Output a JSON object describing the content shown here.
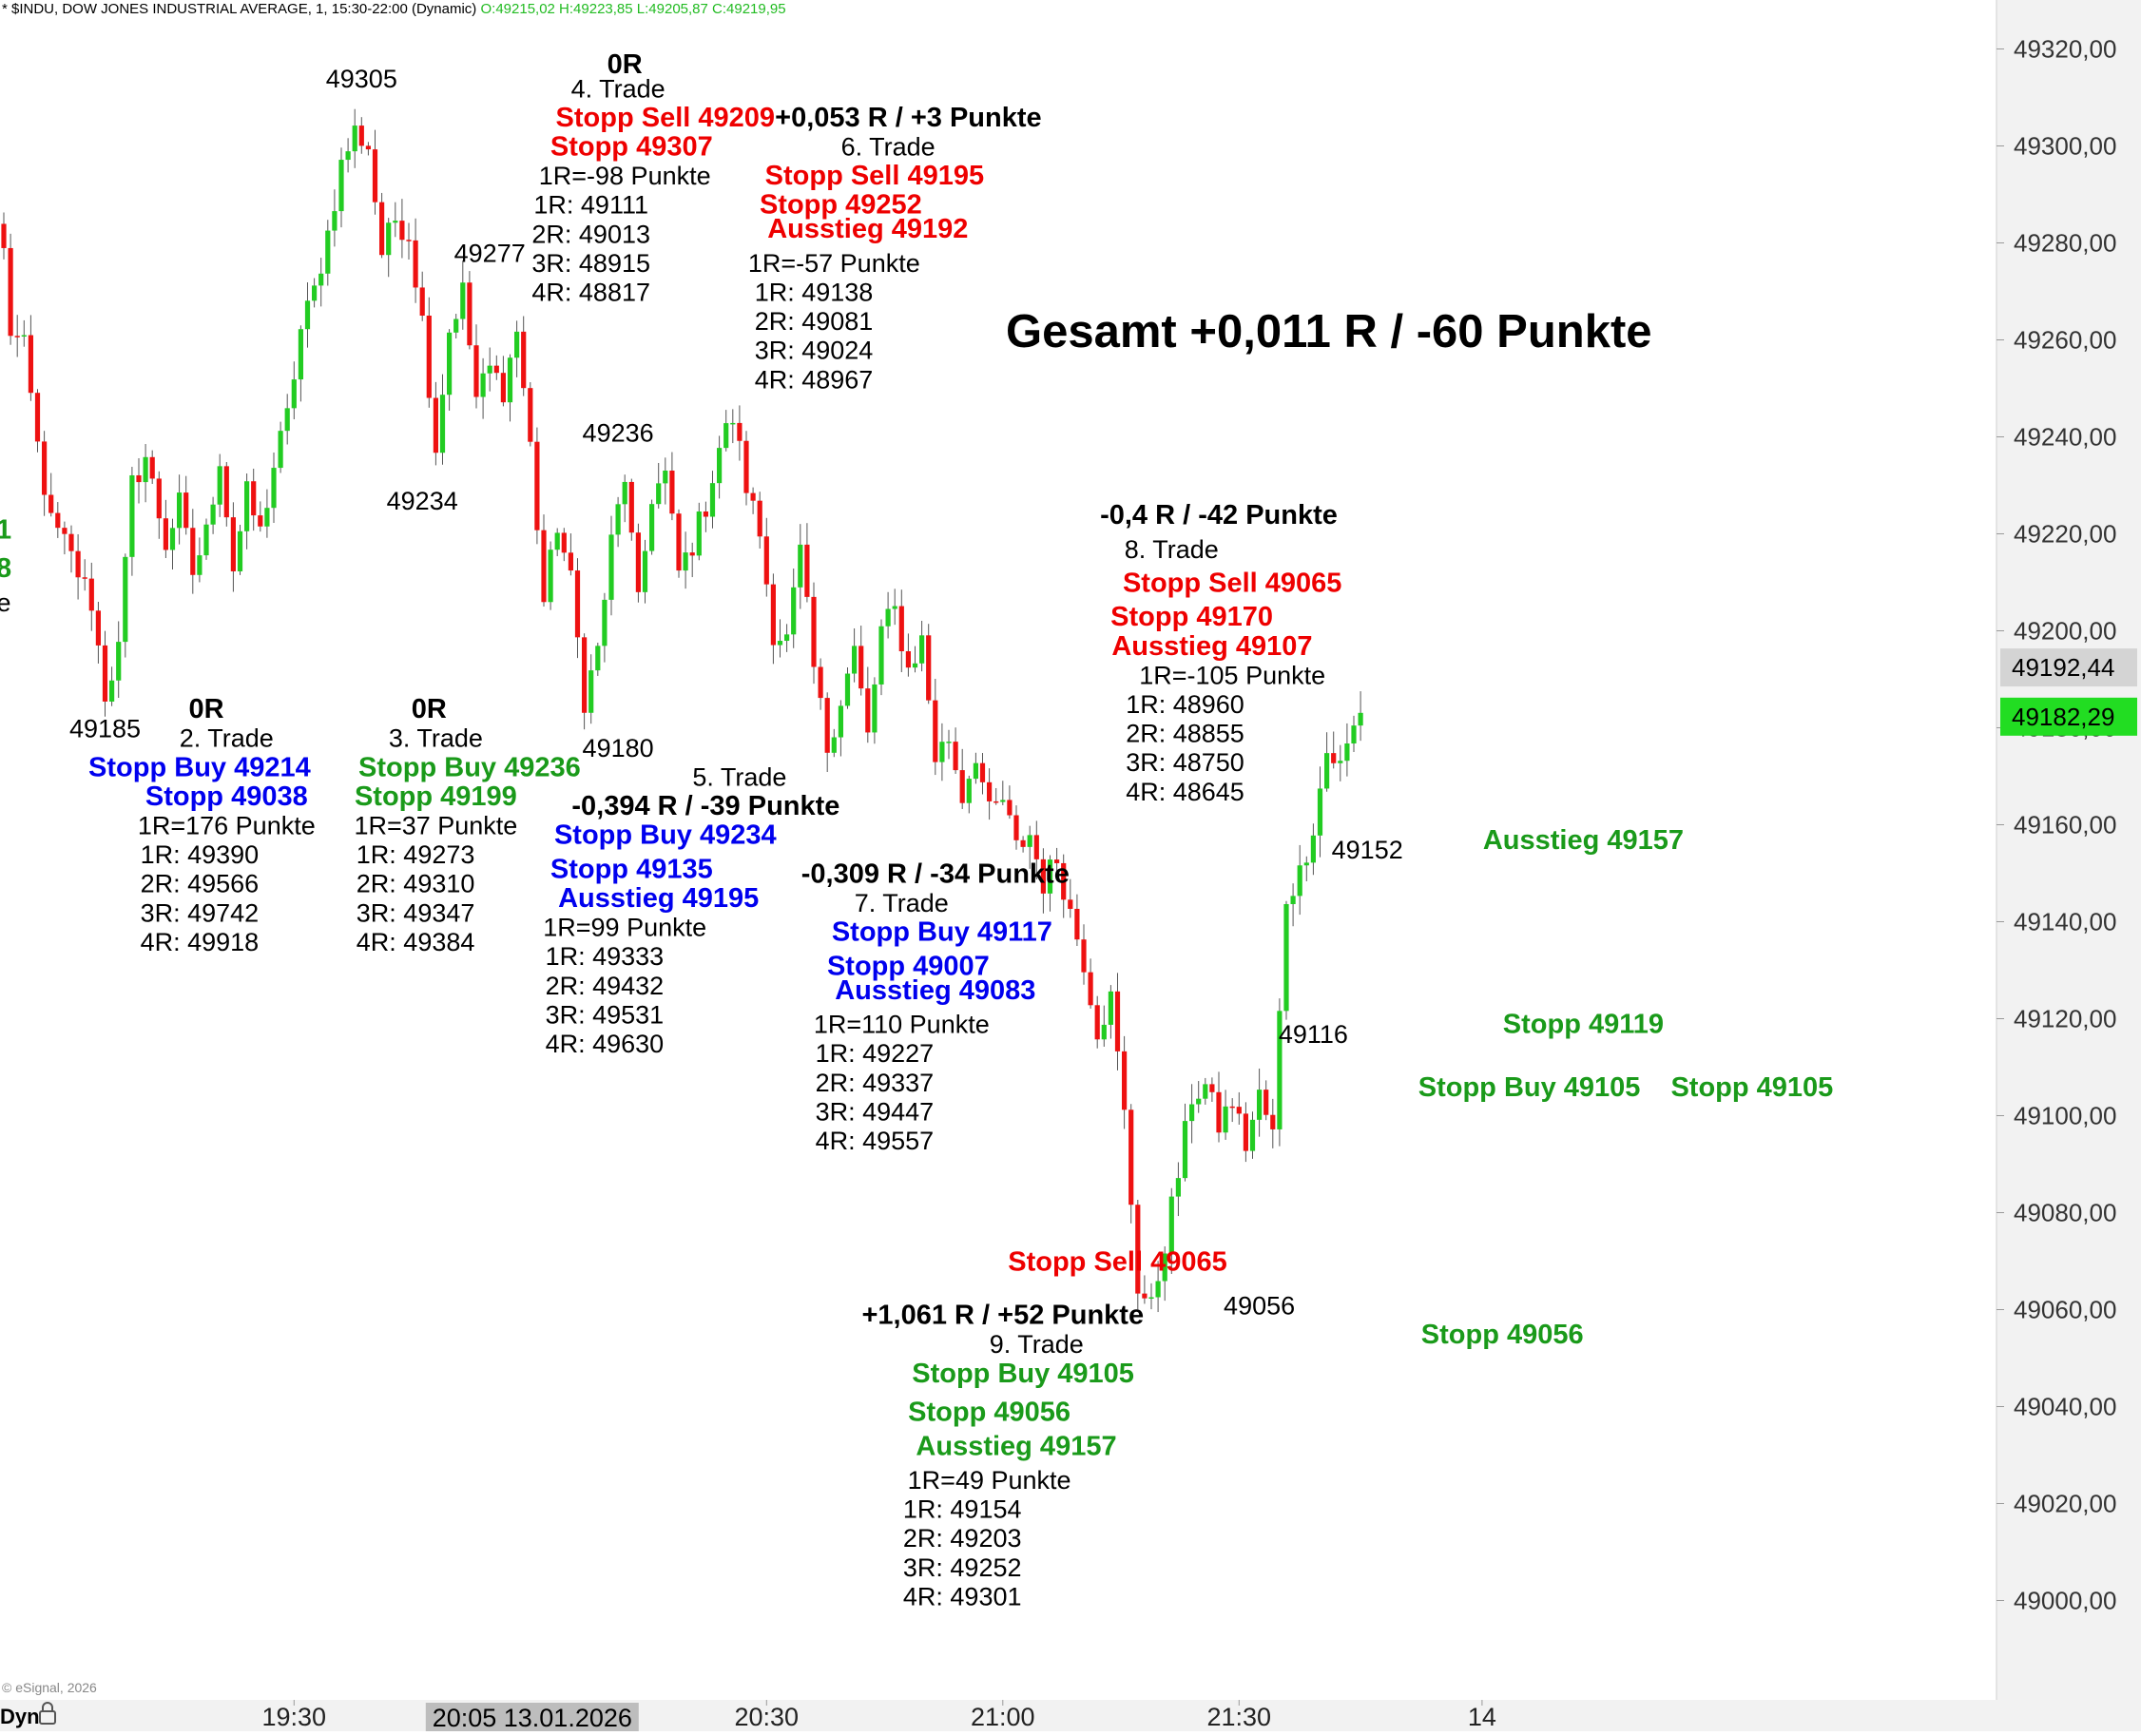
{
  "chart_data": {
    "type": "candlestick",
    "header": {
      "prefix": "* $INDU, DOW JONES INDUSTRIAL AVERAGE, 1, 15:30-22:00 (Dynamic)",
      "ohlc": "O:49215,02 H:49223,85 L:49205,87 C:49219,95"
    },
    "copyright": "© eSignal, 2026",
    "y_axis": {
      "min": 48985,
      "max": 49325,
      "ticks": [
        "49320,00",
        "49300,00",
        "49280,00",
        "49260,00",
        "49240,00",
        "49220,00",
        "49200,00",
        "49180,00",
        "49160,00",
        "49140,00",
        "49120,00",
        "49100,00",
        "49080,00",
        "49060,00",
        "49040,00",
        "49020,00",
        "49000,00"
      ],
      "tick_values": [
        49320,
        49300,
        49280,
        49260,
        49240,
        49220,
        49200,
        49180,
        49160,
        49140,
        49120,
        49100,
        49080,
        49060,
        49040,
        49020,
        49000
      ],
      "last_price_label": "49192,44",
      "last_price": 49192.44,
      "current_price_label": "49182,29",
      "current_price": 49182.29
    },
    "x_axis": {
      "ticks": [
        {
          "label": "19:30",
          "bar": 43
        },
        {
          "label": "20:30",
          "bar": 113
        },
        {
          "label": "21:00",
          "bar": 148
        },
        {
          "label": "21:30",
          "bar": 183
        },
        {
          "label": "14",
          "bar": 219
        }
      ],
      "cursor_label": "20:05 13.01.2026",
      "cursor_bar": 78,
      "dyn_label": "Dyn"
    },
    "title": "Gesamt +0,011 R / -60 Punkte",
    "annotations": [
      {
        "text": "49305",
        "bar": 53,
        "price": 49314,
        "color": "#000000",
        "bold": false
      },
      {
        "text": "49277",
        "bar": 72,
        "price": 49278,
        "color": "#000000",
        "bold": false
      },
      {
        "text": "49234",
        "bar": 62,
        "price": 49227,
        "color": "#000000",
        "bold": false
      },
      {
        "text": "49236",
        "bar": 91,
        "price": 49241,
        "color": "#000000",
        "bold": false
      },
      {
        "text": "49185",
        "bar": 15,
        "price": 49180,
        "color": "#000000",
        "bold": false
      },
      {
        "text": "49180",
        "bar": 91,
        "price": 49176,
        "color": "#000000",
        "bold": false
      },
      {
        "text": "49152",
        "bar": 202,
        "price": 49155,
        "color": "#000000",
        "bold": false
      },
      {
        "text": "49116",
        "bar": 194,
        "price": 49117,
        "color": "#000000",
        "bold": false
      },
      {
        "text": "49056",
        "bar": 186,
        "price": 49061,
        "color": "#000000",
        "bold": false
      },
      {
        "text": "1",
        "bar": 0,
        "price": 49221,
        "color": "#1a9a1a",
        "bold": true
      },
      {
        "text": "8",
        "bar": 0,
        "price": 49213,
        "color": "#1a9a1a",
        "bold": true
      },
      {
        "text": "e",
        "bar": 0,
        "price": 49206,
        "color": "#000000",
        "bold": false
      },
      {
        "text": "0R",
        "bar": 30,
        "price": 49184,
        "color": "#000000",
        "bold": true
      },
      {
        "text": "2. Trade",
        "bar": 33,
        "price": 49178,
        "color": "#000000",
        "bold": false
      },
      {
        "text": "Stopp Buy 49214",
        "bar": 29,
        "price": 49172,
        "color": "#0000ee",
        "bold": true
      },
      {
        "text": "Stopp 49038",
        "bar": 33,
        "price": 49166,
        "color": "#0000ee",
        "bold": true
      },
      {
        "text": "1R=176 Punkte",
        "bar": 33,
        "price": 49160,
        "color": "#000000",
        "bold": false
      },
      {
        "text": "1R: 49390",
        "bar": 29,
        "price": 49154,
        "color": "#000000",
        "bold": false
      },
      {
        "text": "2R: 49566",
        "bar": 29,
        "price": 49148,
        "color": "#000000",
        "bold": false
      },
      {
        "text": "3R: 49742",
        "bar": 29,
        "price": 49142,
        "color": "#000000",
        "bold": false
      },
      {
        "text": "4R: 49918",
        "bar": 29,
        "price": 49136,
        "color": "#000000",
        "bold": false
      },
      {
        "text": "0R",
        "bar": 63,
        "price": 49184,
        "color": "#000000",
        "bold": true
      },
      {
        "text": "3. Trade",
        "bar": 64,
        "price": 49178,
        "color": "#000000",
        "bold": false
      },
      {
        "text": "Stopp Buy 49236",
        "bar": 69,
        "price": 49172,
        "color": "#1a9a1a",
        "bold": true
      },
      {
        "text": "Stopp 49199",
        "bar": 64,
        "price": 49166,
        "color": "#1a9a1a",
        "bold": true
      },
      {
        "text": "1R=37 Punkte",
        "bar": 64,
        "price": 49160,
        "color": "#000000",
        "bold": false
      },
      {
        "text": "1R: 49273",
        "bar": 61,
        "price": 49154,
        "color": "#000000",
        "bold": false
      },
      {
        "text": "2R: 49310",
        "bar": 61,
        "price": 49148,
        "color": "#000000",
        "bold": false
      },
      {
        "text": "3R: 49347",
        "bar": 61,
        "price": 49142,
        "color": "#000000",
        "bold": false
      },
      {
        "text": "4R: 49384",
        "bar": 61,
        "price": 49136,
        "color": "#000000",
        "bold": false
      },
      {
        "text": "0R",
        "bar": 92,
        "price": 49317,
        "color": "#000000",
        "bold": true
      },
      {
        "text": "4. Trade",
        "bar": 91,
        "price": 49312,
        "color": "#000000",
        "bold": false
      },
      {
        "text": "Stopp Sell 49209",
        "bar": 98,
        "price": 49306,
        "color": "#ee0000",
        "bold": true
      },
      {
        "text": "Stopp 49307",
        "bar": 93,
        "price": 49300,
        "color": "#ee0000",
        "bold": true
      },
      {
        "text": "1R=-98 Punkte",
        "bar": 92,
        "price": 49294,
        "color": "#000000",
        "bold": false
      },
      {
        "text": "1R: 49111",
        "bar": 87,
        "price": 49288,
        "color": "#000000",
        "bold": false
      },
      {
        "text": "2R: 49013",
        "bar": 87,
        "price": 49282,
        "color": "#000000",
        "bold": false
      },
      {
        "text": "3R: 48915",
        "bar": 87,
        "price": 49276,
        "color": "#000000",
        "bold": false
      },
      {
        "text": "4R: 48817",
        "bar": 87,
        "price": 49270,
        "color": "#000000",
        "bold": false
      },
      {
        "text": "+0,053 R / +3 Punkte",
        "bar": 134,
        "price": 49306,
        "color": "#000000",
        "bold": true
      },
      {
        "text": "6. Trade",
        "bar": 131,
        "price": 49300,
        "color": "#000000",
        "bold": false
      },
      {
        "text": "Stopp Sell 49195",
        "bar": 129,
        "price": 49294,
        "color": "#ee0000",
        "bold": true
      },
      {
        "text": "Stopp 49252",
        "bar": 124,
        "price": 49288,
        "color": "#ee0000",
        "bold": true
      },
      {
        "text": "Ausstieg 49192",
        "bar": 128,
        "price": 49283,
        "color": "#ee0000",
        "bold": true
      },
      {
        "text": "1R=-57 Punkte",
        "bar": 123,
        "price": 49276,
        "color": "#000000",
        "bold": false
      },
      {
        "text": "1R: 49138",
        "bar": 120,
        "price": 49270,
        "color": "#000000",
        "bold": false
      },
      {
        "text": "2R: 49081",
        "bar": 120,
        "price": 49264,
        "color": "#000000",
        "bold": false
      },
      {
        "text": "3R: 49024",
        "bar": 120,
        "price": 49258,
        "color": "#000000",
        "bold": false
      },
      {
        "text": "4R: 48967",
        "bar": 120,
        "price": 49252,
        "color": "#000000",
        "bold": false
      },
      {
        "text": "5. Trade",
        "bar": 109,
        "price": 49170,
        "color": "#000000",
        "bold": false
      },
      {
        "text": "-0,394 R / -39 Punkte",
        "bar": 104,
        "price": 49164,
        "color": "#000000",
        "bold": true
      },
      {
        "text": "Stopp Buy 49234",
        "bar": 98,
        "price": 49158,
        "color": "#0000ee",
        "bold": true
      },
      {
        "text": "Stopp 49135",
        "bar": 93,
        "price": 49151,
        "color": "#0000ee",
        "bold": true
      },
      {
        "text": "Ausstieg 49195",
        "bar": 97,
        "price": 49145,
        "color": "#0000ee",
        "bold": true
      },
      {
        "text": "1R=99 Punkte",
        "bar": 92,
        "price": 49139,
        "color": "#000000",
        "bold": false
      },
      {
        "text": "1R: 49333",
        "bar": 89,
        "price": 49133,
        "color": "#000000",
        "bold": false
      },
      {
        "text": "2R: 49432",
        "bar": 89,
        "price": 49127,
        "color": "#000000",
        "bold": false
      },
      {
        "text": "3R: 49531",
        "bar": 89,
        "price": 49121,
        "color": "#000000",
        "bold": false
      },
      {
        "text": "4R: 49630",
        "bar": 89,
        "price": 49115,
        "color": "#000000",
        "bold": false
      },
      {
        "text": "-0,309 R / -34 Punkte",
        "bar": 138,
        "price": 49150,
        "color": "#000000",
        "bold": true
      },
      {
        "text": "7. Trade",
        "bar": 133,
        "price": 49144,
        "color": "#000000",
        "bold": false
      },
      {
        "text": "Stopp Buy 49117",
        "bar": 139,
        "price": 49138,
        "color": "#0000ee",
        "bold": true
      },
      {
        "text": "Stopp 49007",
        "bar": 134,
        "price": 49131,
        "color": "#0000ee",
        "bold": true
      },
      {
        "text": "Ausstieg 49083",
        "bar": 138,
        "price": 49126,
        "color": "#0000ee",
        "bold": true
      },
      {
        "text": "1R=110 Punkte",
        "bar": 133,
        "price": 49119,
        "color": "#000000",
        "bold": false
      },
      {
        "text": "1R: 49227",
        "bar": 129,
        "price": 49113,
        "color": "#000000",
        "bold": false
      },
      {
        "text": "2R: 49337",
        "bar": 129,
        "price": 49107,
        "color": "#000000",
        "bold": false
      },
      {
        "text": "3R: 49447",
        "bar": 129,
        "price": 49101,
        "color": "#000000",
        "bold": false
      },
      {
        "text": "4R: 49557",
        "bar": 129,
        "price": 49095,
        "color": "#000000",
        "bold": false
      },
      {
        "text": "-0,4 R / -42 Punkte",
        "bar": 180,
        "price": 49224,
        "color": "#000000",
        "bold": true
      },
      {
        "text": "8. Trade",
        "bar": 173,
        "price": 49217,
        "color": "#000000",
        "bold": false
      },
      {
        "text": "Stopp Sell 49065",
        "bar": 182,
        "price": 49210,
        "color": "#ee0000",
        "bold": true
      },
      {
        "text": "Stopp 49170",
        "bar": 176,
        "price": 49203,
        "color": "#ee0000",
        "bold": true
      },
      {
        "text": "Ausstieg 49107",
        "bar": 179,
        "price": 49197,
        "color": "#ee0000",
        "bold": true
      },
      {
        "text": "1R=-105 Punkte",
        "bar": 182,
        "price": 49191,
        "color": "#000000",
        "bold": false
      },
      {
        "text": "1R: 48960",
        "bar": 175,
        "price": 49185,
        "color": "#000000",
        "bold": false
      },
      {
        "text": "2R: 48855",
        "bar": 175,
        "price": 49179,
        "color": "#000000",
        "bold": false
      },
      {
        "text": "3R: 48750",
        "bar": 175,
        "price": 49173,
        "color": "#000000",
        "bold": false
      },
      {
        "text": "4R: 48645",
        "bar": 175,
        "price": 49167,
        "color": "#000000",
        "bold": false
      },
      {
        "text": "Ausstieg 49157",
        "bar": 234,
        "price": 49157,
        "color": "#1a9a1a",
        "bold": true
      },
      {
        "text": "Stopp 49119",
        "bar": 234,
        "price": 49119,
        "color": "#1a9a1a",
        "bold": true
      },
      {
        "text": "Stopp Buy 49105",
        "bar": 226,
        "price": 49106,
        "color": "#1a9a1a",
        "bold": true
      },
      {
        "text": "Stopp 49105",
        "bar": 259,
        "price": 49106,
        "color": "#1a9a1a",
        "bold": true
      },
      {
        "text": "Stopp Sell 49065",
        "bar": 165,
        "price": 49070,
        "color": "#ee0000",
        "bold": true
      },
      {
        "text": "Stopp 49056",
        "bar": 222,
        "price": 49055,
        "color": "#1a9a1a",
        "bold": true
      },
      {
        "text": "+1,061 R / +52 Punkte",
        "bar": 148,
        "price": 49059,
        "color": "#000000",
        "bold": true
      },
      {
        "text": "9. Trade",
        "bar": 153,
        "price": 49053,
        "color": "#000000",
        "bold": false
      },
      {
        "text": "Stopp Buy 49105",
        "bar": 151,
        "price": 49047,
        "color": "#1a9a1a",
        "bold": true
      },
      {
        "text": "Stopp 49056",
        "bar": 146,
        "price": 49039,
        "color": "#1a9a1a",
        "bold": true
      },
      {
        "text": "Ausstieg 49157",
        "bar": 150,
        "price": 49032,
        "color": "#1a9a1a",
        "bold": true
      },
      {
        "text": "1R=49 Punkte",
        "bar": 146,
        "price": 49025,
        "color": "#000000",
        "bold": false
      },
      {
        "text": "1R: 49154",
        "bar": 142,
        "price": 49019,
        "color": "#000000",
        "bold": false
      },
      {
        "text": "2R: 49203",
        "bar": 142,
        "price": 49013,
        "color": "#000000",
        "bold": false
      },
      {
        "text": "3R: 49252",
        "bar": 142,
        "price": 49007,
        "color": "#000000",
        "bold": false
      },
      {
        "text": "4R: 49301",
        "bar": 142,
        "price": 49001,
        "color": "#000000",
        "bold": false
      }
    ],
    "waypoints": [
      [
        0,
        49278
      ],
      [
        1,
        49262
      ],
      [
        3,
        49258
      ],
      [
        5,
        49238
      ],
      [
        7,
        49222
      ],
      [
        9,
        49218
      ],
      [
        11,
        49212
      ],
      [
        13,
        49206
      ],
      [
        15,
        49187
      ],
      [
        17,
        49196
      ],
      [
        19,
        49230
      ],
      [
        21,
        49236
      ],
      [
        24,
        49218
      ],
      [
        26,
        49226
      ],
      [
        28,
        49212
      ],
      [
        30,
        49220
      ],
      [
        32,
        49236
      ],
      [
        34,
        49213
      ],
      [
        36,
        49228
      ],
      [
        38,
        49220
      ],
      [
        40,
        49234
      ],
      [
        42,
        49244
      ],
      [
        44,
        49262
      ],
      [
        46,
        49270
      ],
      [
        48,
        49282
      ],
      [
        50,
        49296
      ],
      [
        52,
        49303
      ],
      [
        54,
        49300
      ],
      [
        56,
        49278
      ],
      [
        58,
        49285
      ],
      [
        60,
        49282
      ],
      [
        62,
        49264
      ],
      [
        64,
        49238
      ],
      [
        66,
        49262
      ],
      [
        68,
        49270
      ],
      [
        70,
        49248
      ],
      [
        72,
        49254
      ],
      [
        74,
        49250
      ],
      [
        76,
        49262
      ],
      [
        78,
        49238
      ],
      [
        80,
        49206
      ],
      [
        82,
        49222
      ],
      [
        84,
        49210
      ],
      [
        86,
        49186
      ],
      [
        88,
        49196
      ],
      [
        90,
        49218
      ],
      [
        92,
        49232
      ],
      [
        94,
        49205
      ],
      [
        96,
        49228
      ],
      [
        98,
        49232
      ],
      [
        100,
        49212
      ],
      [
        102,
        49218
      ],
      [
        104,
        49226
      ],
      [
        106,
        49238
      ],
      [
        108,
        49244
      ],
      [
        110,
        49230
      ],
      [
        112,
        49220
      ],
      [
        114,
        49200
      ],
      [
        116,
        49198
      ],
      [
        118,
        49216
      ],
      [
        120,
        49192
      ],
      [
        122,
        49176
      ],
      [
        124,
        49186
      ],
      [
        126,
        49196
      ],
      [
        128,
        49178
      ],
      [
        130,
        49200
      ],
      [
        132,
        49204
      ],
      [
        134,
        49192
      ],
      [
        136,
        49198
      ],
      [
        138,
        49174
      ],
      [
        140,
        49178
      ],
      [
        142,
        49166
      ],
      [
        144,
        49175
      ],
      [
        146,
        49162
      ],
      [
        148,
        49165
      ],
      [
        150,
        49155
      ],
      [
        152,
        49158
      ],
      [
        154,
        49148
      ],
      [
        156,
        49153
      ],
      [
        158,
        49142
      ],
      [
        160,
        49132
      ],
      [
        162,
        49118
      ],
      [
        164,
        49124
      ],
      [
        166,
        49100
      ],
      [
        168,
        49065
      ],
      [
        170,
        49060
      ],
      [
        172,
        49074
      ],
      [
        174,
        49088
      ],
      [
        176,
        49104
      ],
      [
        178,
        49106
      ],
      [
        180,
        49098
      ],
      [
        182,
        49103
      ],
      [
        184,
        49094
      ],
      [
        186,
        49104
      ],
      [
        188,
        49096
      ],
      [
        190,
        49145
      ],
      [
        192,
        49150
      ],
      [
        194,
        49160
      ],
      [
        196,
        49175
      ],
      [
        198,
        49172
      ],
      [
        200,
        49180
      ],
      [
        201,
        49184
      ]
    ]
  }
}
